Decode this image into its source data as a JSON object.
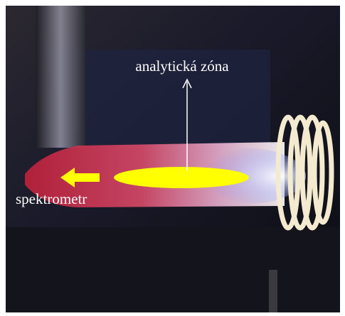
{
  "labels": {
    "zone": "analytická zóna",
    "spectrometer": "spektrometr"
  }
}
